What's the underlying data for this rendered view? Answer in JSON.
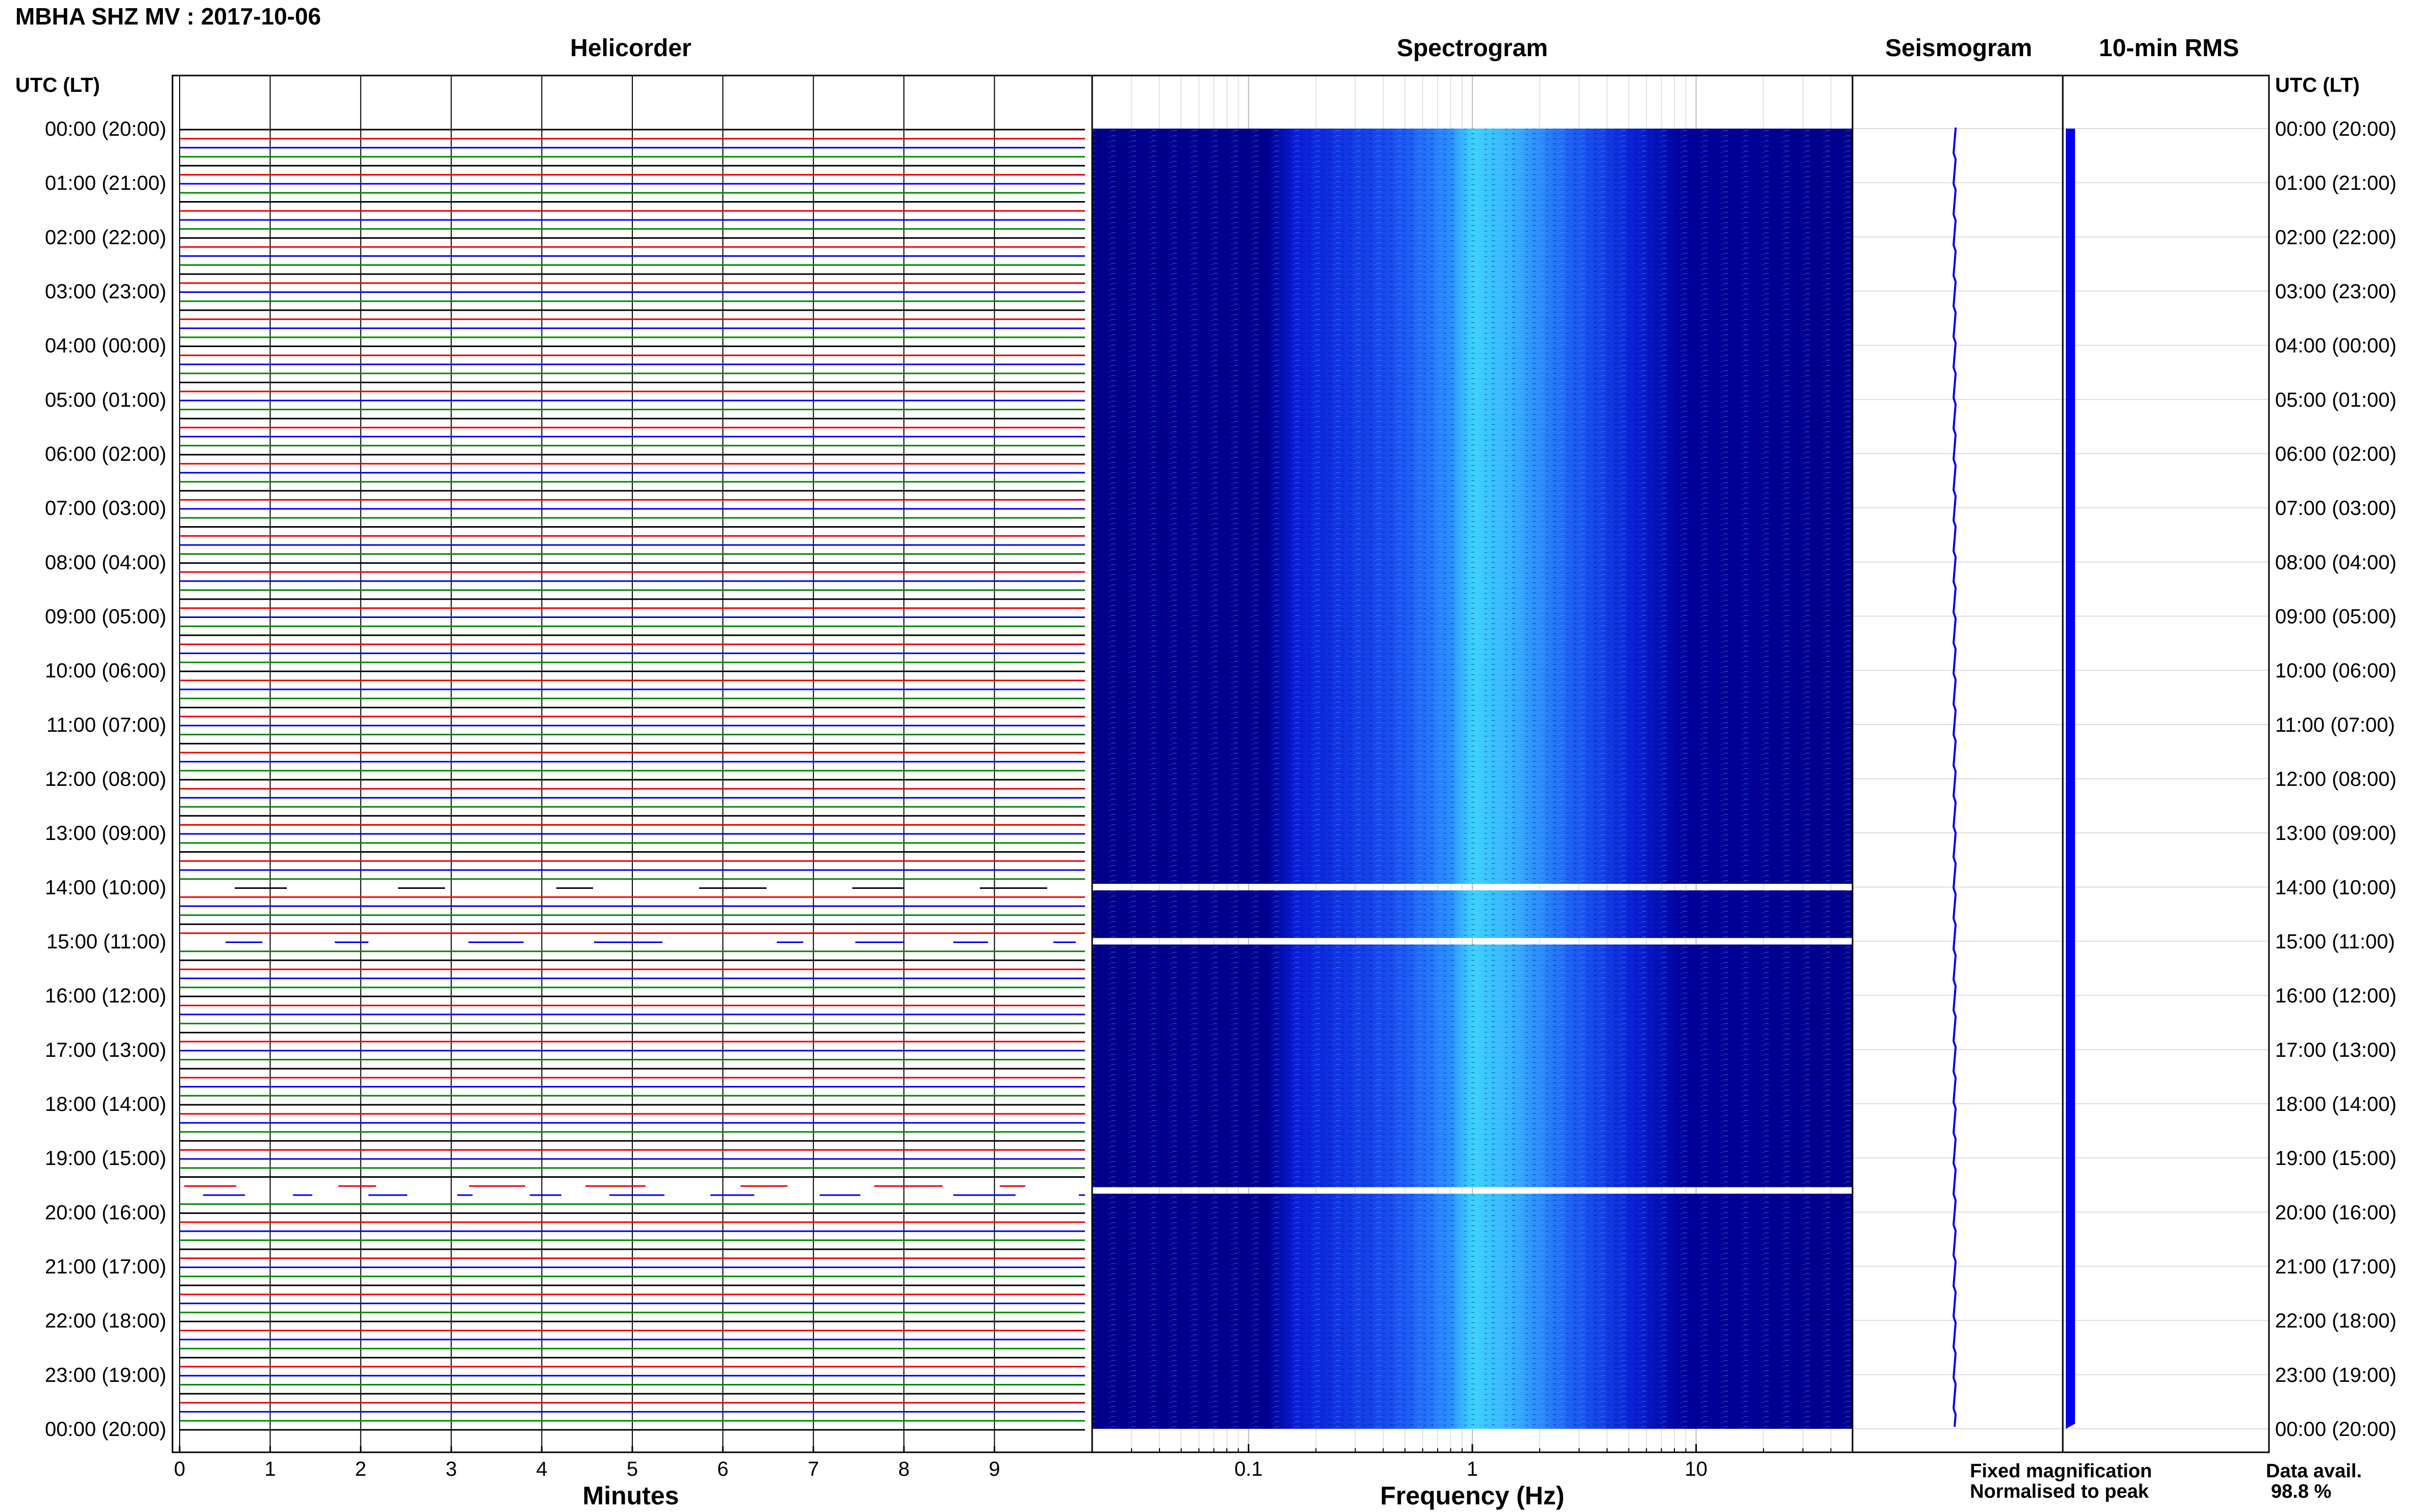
{
  "header": {
    "station_title": "MBHA SHZ MV : 2017-10-06",
    "utc_label_left": "UTC (LT)",
    "utc_label_right": "UTC (LT)"
  },
  "panels": {
    "helicorder_title": "Helicorder",
    "spectrogram_title": "Spectrogram",
    "seismogram_title": "Seismogram",
    "rms_title": "10-min RMS"
  },
  "time_axis": {
    "labels": [
      "00:00 (20:00)",
      "01:00 (21:00)",
      "02:00 (22:00)",
      "03:00 (23:00)",
      "04:00 (00:00)",
      "05:00 (01:00)",
      "06:00 (02:00)",
      "07:00 (03:00)",
      "08:00 (04:00)",
      "09:00 (05:00)",
      "10:00 (06:00)",
      "11:00 (07:00)",
      "12:00 (08:00)",
      "13:00 (09:00)",
      "14:00 (10:00)",
      "15:00 (11:00)",
      "16:00 (12:00)",
      "17:00 (13:00)",
      "18:00 (14:00)",
      "19:00 (15:00)",
      "20:00 (16:00)",
      "21:00 (17:00)",
      "22:00 (18:00)",
      "23:00 (19:00)",
      "00:00 (20:00)"
    ]
  },
  "legend": {
    "fixed_label": "Fixed magnification",
    "normalised_label": "Normalised to peak",
    "fixed_color": "#0000ee",
    "normalised_color": "#ee0000",
    "data_avail_label": "Data avail.",
    "data_avail_value": "98.8 %"
  },
  "chart_data": [
    {
      "type": "line",
      "title": "Helicorder",
      "xlabel": "Minutes",
      "ylabel": "UTC (LT)",
      "x_ticks": [
        "0",
        "1",
        "2",
        "3",
        "4",
        "5",
        "6",
        "7",
        "8",
        "9"
      ],
      "xlim": [
        0,
        10
      ],
      "ylim_hours": [
        0,
        24
      ],
      "trace_colors": [
        "#000000",
        "#ee0000",
        "#0000ee",
        "#008800"
      ],
      "data_gaps_hours": [
        14.0,
        15.0,
        19.6
      ]
    },
    {
      "type": "heatmap",
      "title": "Spectrogram",
      "xlabel": "Frequency (Hz)",
      "x_scale": "log",
      "x_ticks": [
        "0.1",
        "1",
        "10"
      ],
      "xlim_hz": [
        0.02,
        50
      ],
      "ylim_hours": [
        0,
        24
      ],
      "peak_frequency_hz": 1,
      "data_gaps_hours": [
        14.0,
        15.0,
        19.6
      ],
      "colors": [
        "#00008b",
        "#0022ee",
        "#2e86ff",
        "#3dd6ff"
      ]
    },
    {
      "type": "line",
      "title": "Seismogram",
      "ylim_hours": [
        0,
        24
      ],
      "color": "#0000ee"
    },
    {
      "type": "area",
      "title": "10-min RMS",
      "ylim_hours": [
        0,
        24
      ],
      "color": "#0000ee"
    }
  ]
}
